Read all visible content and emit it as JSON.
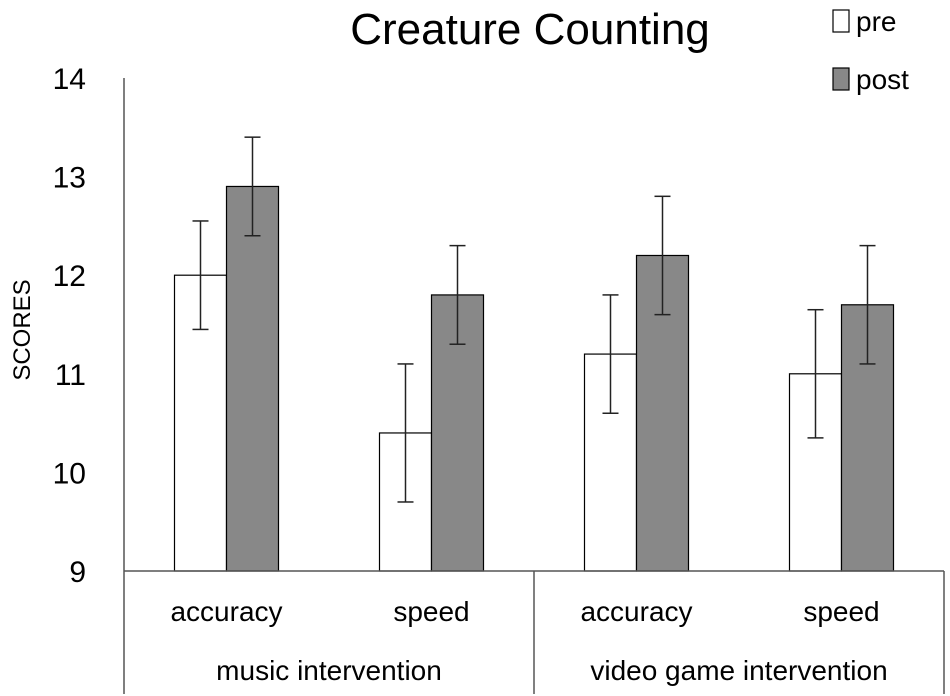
{
  "chart_data": {
    "type": "bar",
    "title": "Creature Counting",
    "ylabel": "SCORES",
    "ylim": [
      9,
      14
    ],
    "yticks": [
      9,
      10,
      11,
      12,
      13,
      14
    ],
    "groups": [
      {
        "label": "music intervention",
        "categories": [
          "accuracy",
          "speed"
        ]
      },
      {
        "label": "video game intervention",
        "categories": [
          "accuracy",
          "speed"
        ]
      }
    ],
    "series": [
      {
        "name": "pre",
        "color": "#ffffff",
        "values": [
          12.0,
          10.4,
          11.2,
          11.0
        ],
        "errors": [
          0.55,
          0.7,
          0.6,
          0.65
        ]
      },
      {
        "name": "post",
        "color": "#888888",
        "values": [
          12.9,
          11.8,
          12.2,
          11.7
        ],
        "errors": [
          0.5,
          0.5,
          0.6,
          0.6
        ]
      }
    ],
    "legend": "top-right",
    "grid": false
  }
}
